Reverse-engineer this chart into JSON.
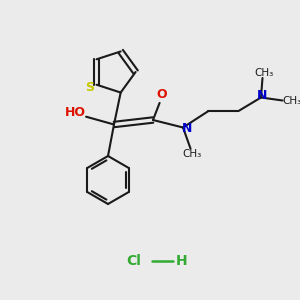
{
  "background_color": "#ebebeb",
  "bond_color": "#1a1a1a",
  "sulfur_color": "#c8c800",
  "oxygen_color": "#dd1100",
  "nitrogen_color": "#0000cc",
  "hcl_color": "#33aa33",
  "figsize": [
    3.0,
    3.0
  ],
  "dpi": 100,
  "xlim": [
    0,
    10
  ],
  "ylim": [
    0,
    10
  ]
}
